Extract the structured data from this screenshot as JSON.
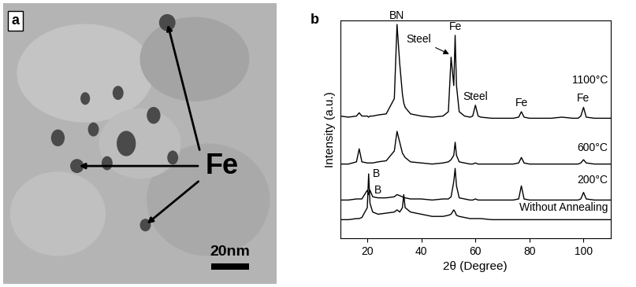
{
  "panel_a": {
    "label": "a",
    "annotation": "Fe",
    "scale_bar": "20nm"
  },
  "chart_data": {
    "type": "line",
    "panel_label": "b",
    "x_label": "2θ (Degree)",
    "y_label": "Intensity (a.u.)",
    "xlim": [
      10,
      110
    ],
    "xticks": [
      20,
      40,
      60,
      80,
      100
    ],
    "ylim": [
      0,
      100
    ],
    "yticks": [],
    "tick_labels": "x",
    "grid": false,
    "color": "#000000",
    "x": [
      10,
      13,
      16,
      17,
      18,
      20,
      20.5,
      21,
      22,
      24,
      27,
      30,
      31,
      32,
      33,
      33.5,
      34,
      36,
      40,
      44,
      48,
      50,
      51,
      52,
      52.5,
      53,
      54,
      56,
      58,
      59,
      60,
      61,
      62,
      66,
      70,
      74,
      76,
      77,
      78,
      80,
      84,
      88,
      92,
      96,
      98,
      99,
      100,
      101,
      104,
      108,
      110
    ],
    "series": [
      {
        "name": "1100°C",
        "values": [
          56,
          55.5,
          56,
          57.5,
          56,
          56,
          55.5,
          56,
          56,
          56.5,
          57,
          64,
          98,
          80,
          66,
          62,
          60,
          57,
          56,
          55.5,
          56,
          58,
          83,
          70,
          93,
          70,
          58,
          56,
          55.5,
          56,
          61,
          56,
          55.5,
          55,
          55,
          55,
          55.5,
          58,
          55.5,
          55,
          55,
          55,
          55.5,
          55,
          55,
          56,
          60,
          55.5,
          55,
          55,
          55
        ]
      },
      {
        "name": "600°C",
        "values": [
          34,
          34,
          35,
          41,
          35,
          34.5,
          34.5,
          34.5,
          34.5,
          35,
          35.5,
          40,
          49,
          44,
          39,
          38,
          37,
          35,
          34.5,
          34,
          34.5,
          35,
          36,
          38,
          44,
          38,
          35,
          34.5,
          34,
          34,
          34.5,
          34,
          34,
          34,
          34,
          34,
          34.5,
          37,
          34.5,
          34,
          34,
          34,
          34,
          34,
          34,
          34.5,
          36,
          34.5,
          34,
          34,
          34
        ]
      },
      {
        "name": "200°C",
        "values": [
          17.5,
          17.5,
          18,
          18,
          18,
          22,
          20,
          22,
          19,
          18.5,
          18.5,
          19,
          20,
          19.5,
          19,
          18.5,
          18.5,
          18,
          18,
          17.5,
          18,
          18,
          19,
          26,
          32,
          24,
          18.5,
          18,
          17.5,
          17.5,
          18,
          17.5,
          17.5,
          17.5,
          17.5,
          17.5,
          18,
          24,
          18,
          17.5,
          17.5,
          17.5,
          17.5,
          17.5,
          17.5,
          18,
          21,
          18,
          17.5,
          17.5,
          17.5
        ]
      },
      {
        "name": "Without Annealing",
        "values": [
          8.5,
          8.5,
          9,
          9,
          9.5,
          14,
          29.5,
          16,
          12,
          11,
          11.5,
          12,
          13,
          12,
          14,
          20,
          14,
          12,
          11,
          10,
          10,
          10.5,
          11,
          13,
          12,
          10.5,
          10,
          9.5,
          9,
          9,
          9,
          9,
          9,
          8.5,
          8.5,
          8.5,
          8.5,
          8.5,
          8.5,
          8.5,
          8.5,
          8.5,
          8.5,
          8.5,
          8.5,
          8.5,
          8.5,
          8.5,
          8.5,
          8.5,
          8.5
        ]
      }
    ],
    "annotations": [
      {
        "text": "BN",
        "x": 31,
        "series": "1100°C"
      },
      {
        "text": "Steel",
        "x": 51,
        "series": "1100°C"
      },
      {
        "text": "Fe",
        "x": 52.5,
        "series": "1100°C"
      },
      {
        "text": "Steel",
        "x": 60,
        "series": "1100°C"
      },
      {
        "text": "Fe",
        "x": 77,
        "series": "1100°C"
      },
      {
        "text": "Fe",
        "x": 100,
        "series": "1100°C"
      },
      {
        "text": "B",
        "x": 21,
        "series": "200°C"
      },
      {
        "text": "B",
        "x": 20.5,
        "series": "Without Annealing"
      }
    ]
  }
}
